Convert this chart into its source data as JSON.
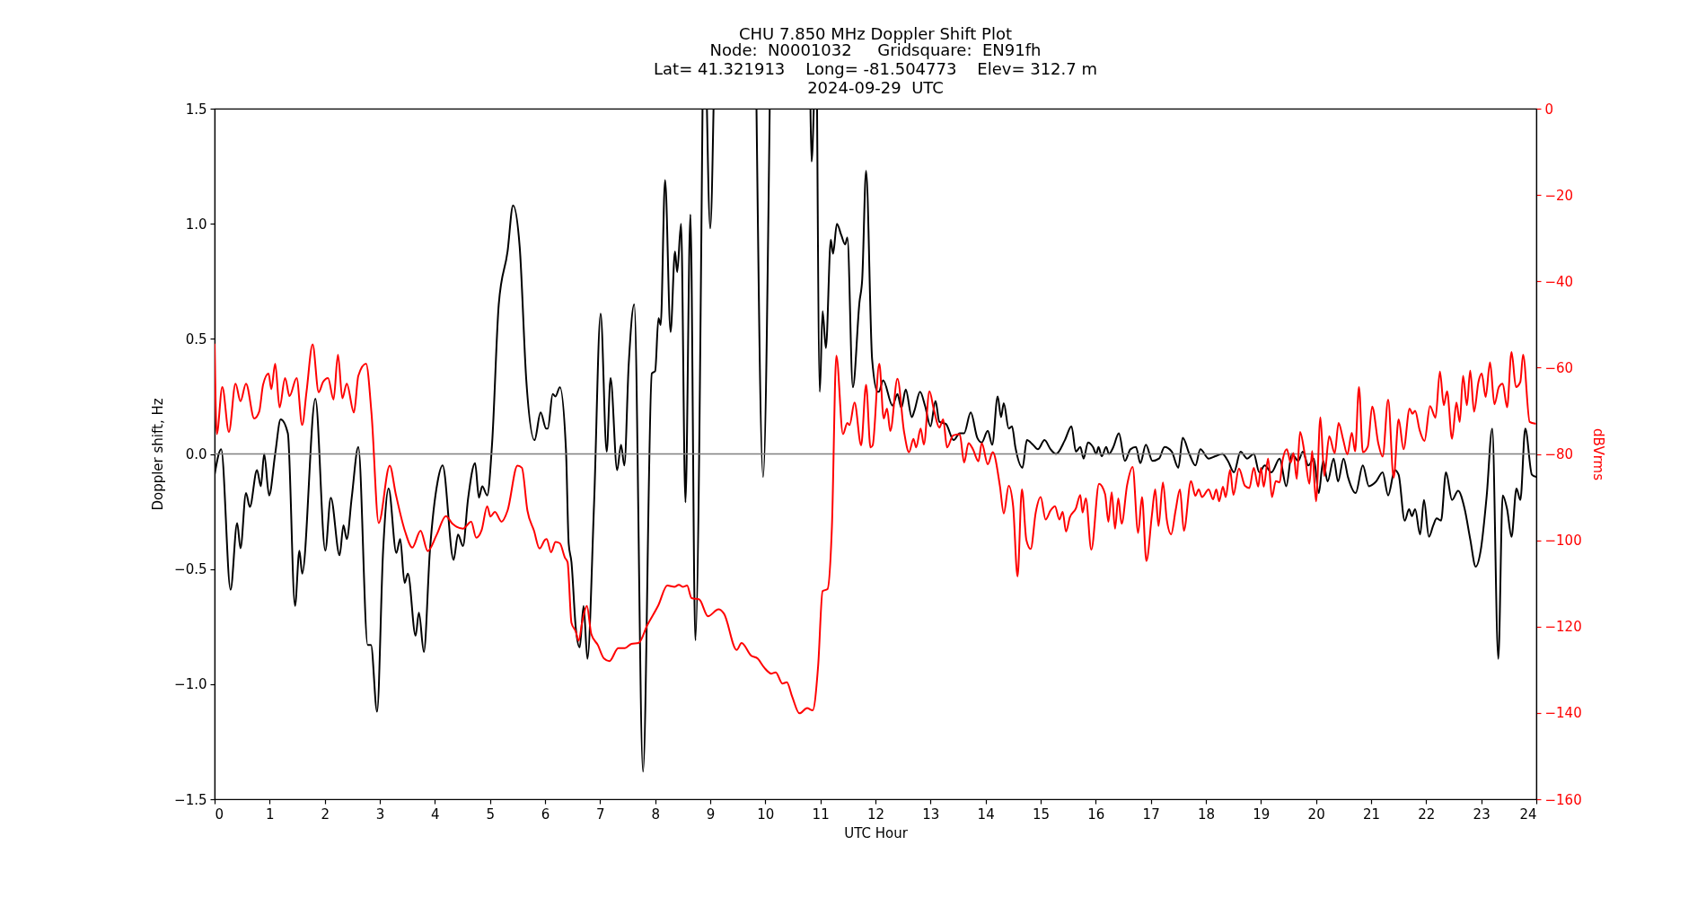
{
  "chart_data": {
    "type": "line",
    "title": "CHU 7.850 MHz Doppler Shift Plot",
    "subtitle": "Node:  N0001032     Gridsquare:  EN91fh\nLat= 41.321913    Long= -81.504773    Elev= 312.7 m\n2024-09-29  UTC",
    "xlabel": "UTC Hour",
    "ylabel": "Doppler shift, Hz",
    "y2label": "dBVrms",
    "xlim": [
      0,
      24
    ],
    "xticks": [
      0,
      1,
      2,
      3,
      4,
      5,
      6,
      7,
      8,
      9,
      10,
      11,
      12,
      13,
      14,
      15,
      16,
      17,
      18,
      19,
      20,
      21,
      22,
      23,
      24
    ],
    "ylim": [
      -1.5,
      1.5
    ],
    "yticks": [
      {
        "value": -1.5,
        "label": "−1.5"
      },
      {
        "value": -1.0,
        "label": "−1.0"
      },
      {
        "value": -0.5,
        "label": "−0.5"
      },
      {
        "value": 0,
        "label": "0.0"
      },
      {
        "value": 0.5,
        "label": "0.5"
      },
      {
        "value": 1.0,
        "label": "1.0"
      },
      {
        "value": 1.5,
        "label": "1.5"
      }
    ],
    "y2lim": [
      -160,
      0
    ],
    "y2ticks": [
      {
        "value": -160,
        "label": "−160"
      },
      {
        "value": -140,
        "label": "−140"
      },
      {
        "value": -120,
        "label": "−120"
      },
      {
        "value": -100,
        "label": "−100"
      },
      {
        "value": -80,
        "label": "−80"
      },
      {
        "value": -60,
        "label": "−60"
      },
      {
        "value": -40,
        "label": "−40"
      },
      {
        "value": -20,
        "label": "−20"
      },
      0
    ],
    "ref_lines": [
      {
        "axis": "y",
        "value": 0,
        "color": "#808080"
      }
    ],
    "series": [
      {
        "color": "#000000",
        "x": [
          0,
          0.12,
          0.29,
          0.41,
          0.47,
          0.57,
          0.64,
          0.77,
          0.84,
          0.9,
          0.99,
          1.1,
          1.2,
          1.33,
          1.46,
          1.54,
          1.59,
          1.83,
          2.01,
          2.11,
          2.27,
          2.34,
          2.4,
          2.49,
          2.61,
          2.78,
          2.84,
          2.95,
          3.06,
          3.16,
          3.3,
          3.37,
          3.45,
          3.51,
          3.65,
          3.71,
          3.8,
          3.91,
          4.05,
          4.14,
          4.34,
          4.42,
          4.51,
          4.6,
          4.73,
          4.8,
          4.86,
          4.95,
          5.04,
          5.16,
          5.32,
          5.42,
          5.54,
          5.66,
          5.81,
          5.92,
          6.02,
          6.05,
          6.14,
          6.19,
          6.27,
          6.38,
          6.43,
          6.48,
          6.56,
          6.63,
          6.7,
          6.77,
          6.89,
          7.01,
          7.12,
          7.19,
          7.31,
          7.38,
          7.44,
          7.52,
          7.62,
          7.78,
          7.94,
          8.0,
          8.06,
          8.1,
          8.18,
          8.28,
          8.36,
          8.4,
          8.47,
          8.55,
          8.64,
          8.73,
          8.86,
          8.9,
          8.94,
          9.0,
          9.06,
          9.45,
          9.84,
          9.96,
          10.08,
          10.45,
          10.82,
          10.84,
          10.88,
          10.91,
          10.94,
          10.99,
          11.04,
          11.1,
          11.19,
          11.23,
          11.3,
          11.38,
          11.45,
          11.49,
          11.59,
          11.71,
          11.76,
          11.83,
          11.94,
          12.04,
          12.06,
          12.14,
          12.31,
          12.4,
          12.47,
          12.55,
          12.66,
          12.71,
          12.81,
          12.9,
          13.0,
          13.09,
          13.16,
          13.28,
          13.42,
          13.53,
          13.61,
          13.73,
          13.85,
          13.93,
          14.04,
          14.12,
          14.22,
          14.28,
          14.33,
          14.42,
          14.48,
          14.54,
          14.67,
          14.75,
          14.86,
          14.95,
          15.07,
          15.18,
          15.28,
          15.44,
          15.56,
          15.64,
          15.72,
          15.78,
          15.86,
          15.95,
          16.01,
          16.05,
          16.11,
          16.19,
          16.24,
          16.32,
          16.42,
          16.53,
          16.63,
          16.73,
          16.81,
          16.91,
          17.03,
          17.15,
          17.25,
          17.38,
          17.5,
          17.58,
          17.7,
          17.81,
          17.9,
          18.05,
          18.17,
          18.3,
          18.4,
          18.51,
          18.63,
          18.75,
          18.87,
          18.97,
          19.07,
          19.19,
          19.34,
          19.46,
          19.56,
          19.68,
          19.76,
          19.86,
          19.96,
          20.05,
          20.13,
          20.21,
          20.32,
          20.4,
          20.5,
          20.58,
          20.72,
          20.85,
          20.96,
          21.09,
          21.21,
          21.31,
          21.43,
          21.5,
          21.61,
          21.69,
          21.74,
          21.8,
          21.89,
          21.96,
          22.05,
          22.13,
          22.19,
          22.27,
          22.36,
          22.47,
          22.58,
          22.7,
          22.8,
          22.9,
          22.99,
          23.1,
          23.2,
          23.31,
          23.39,
          23.47,
          23.55,
          23.64,
          23.71,
          23.8,
          23.92,
          24.0
        ],
        "values": [
          -0.09,
          0.02,
          -0.59,
          -0.3,
          -0.41,
          -0.17,
          -0.23,
          -0.07,
          -0.14,
          0.0,
          -0.18,
          0.0,
          0.15,
          0.09,
          -0.66,
          -0.42,
          -0.52,
          0.24,
          -0.42,
          -0.19,
          -0.44,
          -0.31,
          -0.37,
          -0.19,
          0.03,
          -0.83,
          -0.83,
          -1.12,
          -0.42,
          -0.15,
          -0.43,
          -0.37,
          -0.56,
          -0.52,
          -0.79,
          -0.69,
          -0.86,
          -0.42,
          -0.12,
          -0.05,
          -0.46,
          -0.35,
          -0.4,
          -0.2,
          -0.04,
          -0.19,
          -0.14,
          -0.18,
          0.05,
          0.65,
          0.88,
          1.08,
          0.9,
          0.32,
          0.06,
          0.18,
          0.11,
          0.11,
          0.26,
          0.25,
          0.29,
          0.02,
          -0.39,
          -0.47,
          -0.76,
          -0.84,
          -0.66,
          -0.89,
          -0.22,
          0.61,
          0.01,
          0.33,
          -0.07,
          0.04,
          -0.05,
          0.39,
          0.65,
          -1.38,
          0.35,
          0.36,
          0.59,
          0.56,
          1.19,
          0.53,
          0.88,
          0.79,
          1.0,
          -0.21,
          1.04,
          -0.81,
          1.5,
          null,
          1.5,
          0.98,
          1.5,
          null,
          1.5,
          -0.1,
          1.5,
          null,
          1.5,
          1.27,
          1.5,
          null,
          1.5,
          0.27,
          0.62,
          0.46,
          0.93,
          0.87,
          1.0,
          0.95,
          0.91,
          0.94,
          0.29,
          0.66,
          0.76,
          1.23,
          0.41,
          0.27,
          0.27,
          0.32,
          0.21,
          0.26,
          0.2,
          0.28,
          0.16,
          0.19,
          0.27,
          0.21,
          0.12,
          0.23,
          0.14,
          0.13,
          0.06,
          0.09,
          0.09,
          0.18,
          0.07,
          0.05,
          0.1,
          0.04,
          0.25,
          0.16,
          0.22,
          0.11,
          0.12,
          0.03,
          -0.06,
          0.06,
          0.04,
          0.02,
          0.06,
          0.02,
          0.0,
          0.06,
          0.12,
          0.01,
          0.03,
          -0.02,
          0.05,
          0.03,
          0.0,
          0.03,
          -0.01,
          0.03,
          0.0,
          0.03,
          0.09,
          -0.03,
          0.02,
          0.03,
          -0.04,
          0.04,
          -0.03,
          -0.02,
          0.03,
          0.01,
          -0.06,
          0.07,
          0.0,
          -0.05,
          0.02,
          -0.02,
          -0.01,
          0.0,
          -0.03,
          -0.08,
          0.01,
          -0.02,
          0.0,
          -0.08,
          -0.05,
          -0.08,
          -0.02,
          -0.14,
          0.0,
          -0.03,
          0.01,
          -0.05,
          -0.02,
          -0.17,
          -0.03,
          -0.12,
          -0.02,
          -0.12,
          -0.02,
          -0.1,
          -0.17,
          -0.05,
          -0.14,
          -0.12,
          -0.08,
          -0.18,
          -0.07,
          -0.09,
          -0.29,
          -0.24,
          -0.27,
          -0.24,
          -0.35,
          -0.2,
          -0.36,
          -0.31,
          -0.28,
          -0.29,
          -0.08,
          -0.2,
          -0.16,
          -0.24,
          -0.37,
          -0.49,
          -0.42,
          -0.18,
          0.11,
          -0.89,
          -0.18,
          -0.24,
          -0.36,
          -0.15,
          -0.2,
          0.11,
          -0.09,
          -0.1
        ]
      },
      {
        "color": "#ff0000",
        "axis": "y2",
        "x": [
          0,
          0.04,
          0.14,
          0.26,
          0.38,
          0.47,
          0.57,
          0.72,
          0.81,
          0.88,
          0.98,
          1.03,
          1.1,
          1.18,
          1.28,
          1.36,
          1.49,
          1.59,
          1.67,
          1.78,
          1.89,
          1.97,
          2.06,
          2.16,
          2.24,
          2.32,
          2.4,
          2.53,
          2.61,
          2.75,
          2.85,
          2.98,
          3.18,
          3.29,
          3.46,
          3.59,
          3.74,
          3.87,
          4.03,
          4.2,
          4.32,
          4.51,
          4.66,
          4.75,
          4.85,
          4.95,
          5.01,
          5.09,
          5.21,
          5.32,
          5.5,
          5.58,
          5.68,
          5.8,
          5.9,
          6.0,
          6.03,
          6.11,
          6.19,
          6.27,
          6.36,
          6.41,
          6.48,
          6.56,
          6.61,
          6.68,
          6.76,
          6.84,
          6.96,
          7.07,
          7.17,
          7.33,
          7.45,
          7.57,
          7.7,
          7.86,
          8.06,
          8.22,
          8.35,
          8.43,
          8.5,
          8.58,
          8.66,
          8.8,
          8.96,
          9.15,
          9.25,
          9.48,
          9.57,
          9.74,
          9.86,
          9.98,
          10.11,
          10.19,
          10.31,
          10.39,
          10.49,
          10.62,
          10.76,
          10.86,
          10.96,
          11.04,
          11.13,
          11.21,
          11.29,
          11.41,
          11.49,
          11.53,
          11.62,
          11.74,
          11.83,
          11.91,
          11.95,
          12.07,
          12.15,
          12.21,
          12.27,
          12.4,
          12.52,
          12.61,
          12.69,
          12.74,
          12.82,
          12.88,
          12.98,
          13.06,
          13.16,
          13.23,
          13.3,
          13.41,
          13.53,
          13.61,
          13.69,
          13.77,
          13.87,
          13.93,
          14.04,
          14.13,
          14.26,
          14.33,
          14.42,
          14.5,
          14.58,
          14.66,
          14.74,
          14.82,
          14.91,
          15.0,
          15.09,
          15.18,
          15.26,
          15.34,
          15.4,
          15.46,
          15.53,
          15.64,
          15.72,
          15.76,
          15.82,
          15.92,
          16.06,
          16.17,
          16.23,
          16.29,
          16.35,
          16.41,
          16.47,
          16.57,
          16.67,
          16.77,
          16.84,
          16.92,
          17.02,
          17.08,
          17.14,
          17.22,
          17.29,
          17.37,
          17.45,
          17.53,
          17.6,
          17.73,
          17.81,
          17.87,
          17.93,
          18.05,
          18.13,
          18.19,
          18.24,
          18.31,
          18.36,
          18.44,
          18.5,
          18.6,
          18.71,
          18.79,
          18.87,
          18.95,
          19.0,
          19.05,
          19.13,
          19.2,
          19.27,
          19.34,
          19.39,
          19.47,
          19.54,
          19.59,
          19.65,
          19.71,
          19.79,
          19.88,
          19.93,
          20.0,
          20.08,
          20.15,
          20.24,
          20.34,
          20.41,
          20.49,
          20.57,
          20.65,
          20.71,
          20.78,
          20.85,
          20.94,
          21.02,
          21.13,
          21.21,
          21.31,
          21.41,
          21.5,
          21.59,
          21.7,
          21.75,
          21.8,
          21.88,
          21.97,
          22.07,
          22.17,
          22.25,
          22.32,
          22.38,
          22.47,
          22.55,
          22.61,
          22.67,
          22.74,
          22.8,
          22.87,
          22.95,
          23.01,
          23.08,
          23.16,
          23.24,
          23.32,
          23.39,
          23.47,
          23.55,
          23.63,
          23.71,
          23.76,
          23.88,
          23.98
        ],
        "values": [
          -54.6,
          -75.4,
          -64.5,
          -74.9,
          -63.7,
          -67.8,
          -63.7,
          -71.8,
          -70.2,
          -64.0,
          -61.4,
          -65.0,
          -59.1,
          -69.2,
          -62.4,
          -66.6,
          -62.4,
          -73.3,
          -65.5,
          -54.6,
          -65.7,
          -63.3,
          -62.4,
          -67.4,
          -57.0,
          -67.1,
          -63.7,
          -70.4,
          -61.9,
          -59.1,
          -70.7,
          -96.0,
          -82.7,
          -89.3,
          -98.0,
          -101.7,
          -97.8,
          -102.5,
          -98.8,
          -94.4,
          -96.2,
          -97.3,
          -95.7,
          -99.4,
          -97.6,
          -92.1,
          -94.5,
          -93.4,
          -95.7,
          -93.1,
          -82.7,
          -83.2,
          -93.1,
          -97.8,
          -101.9,
          -99.9,
          -99.7,
          -102.8,
          -100.4,
          -100.7,
          -104.0,
          -105.1,
          -119.1,
          -121.2,
          -123.3,
          -118.6,
          -115.2,
          -121.7,
          -124.3,
          -127.4,
          -128.0,
          -125.0,
          -125.0,
          -124.0,
          -123.8,
          -119.6,
          -115.0,
          -110.5,
          -110.8,
          -110.3,
          -110.8,
          -110.5,
          -113.4,
          -113.7,
          -117.6,
          -116.0,
          -117.0,
          -125.4,
          -123.8,
          -126.7,
          -127.4,
          -129.5,
          -130.9,
          -130.6,
          -133.2,
          -132.9,
          -136.3,
          -140.1,
          -138.9,
          -139.4,
          -129.0,
          -111.8,
          -111.3,
          -96.7,
          -57.2,
          -75.4,
          -72.8,
          -73.3,
          -68.1,
          -78.0,
          -64.0,
          -78.5,
          -78.0,
          -59.1,
          -71.8,
          -69.5,
          -74.7,
          -62.6,
          -74.9,
          -79.6,
          -76.5,
          -78.5,
          -74.1,
          -77.8,
          -65.5,
          -69.7,
          -73.9,
          -72.0,
          -78.5,
          -75.7,
          -75.4,
          -82.0,
          -77.5,
          -78.9,
          -81.7,
          -77.5,
          -82.4,
          -79.6,
          -87.4,
          -93.8,
          -87.4,
          -92.1,
          -108.4,
          -88.2,
          -99.9,
          -102.0,
          -93.6,
          -90.0,
          -95.2,
          -93.1,
          -92.1,
          -95.2,
          -93.4,
          -98.0,
          -94.7,
          -92.6,
          -89.5,
          -93.6,
          -90.3,
          -102.2,
          -86.9,
          -89.3,
          -95.7,
          -88.9,
          -97.3,
          -90.3,
          -96.2,
          -87.2,
          -83.0,
          -98.3,
          -90.0,
          -104.8,
          -94.2,
          -88.2,
          -96.7,
          -86.6,
          -95.2,
          -98.6,
          -93.1,
          -88.2,
          -97.8,
          -86.3,
          -89.7,
          -88.2,
          -90.0,
          -88.2,
          -90.5,
          -88.2,
          -91.0,
          -87.6,
          -90.0,
          -83.7,
          -89.5,
          -83.4,
          -87.4,
          -87.9,
          -83.2,
          -87.6,
          -83.2,
          -87.6,
          -81.1,
          -90.0,
          -86.3,
          -86.6,
          -81.7,
          -78.9,
          -82.0,
          -79.8,
          -85.8,
          -74.9,
          -79.6,
          -86.9,
          -79.3,
          -91.0,
          -71.5,
          -85.1,
          -75.9,
          -79.8,
          -72.8,
          -76.5,
          -80.1,
          -75.1,
          -79.4,
          -64.5,
          -79.6,
          -78.3,
          -69.0,
          -77.5,
          -80.6,
          -67.4,
          -85.5,
          -72.0,
          -78.9,
          -69.5,
          -70.7,
          -70.0,
          -74.4,
          -77.0,
          -68.9,
          -71.6,
          -60.9,
          -68.7,
          -65.5,
          -76.5,
          -68.1,
          -72.6,
          -61.9,
          -68.7,
          -60.7,
          -70.2,
          -63.3,
          -61.4,
          -66.8,
          -58.8,
          -68.5,
          -64.5,
          -63.7,
          -69.2,
          -56.4,
          -64.5,
          -63.3,
          -57.0,
          -72.6,
          -73.0
        ]
      }
    ]
  }
}
